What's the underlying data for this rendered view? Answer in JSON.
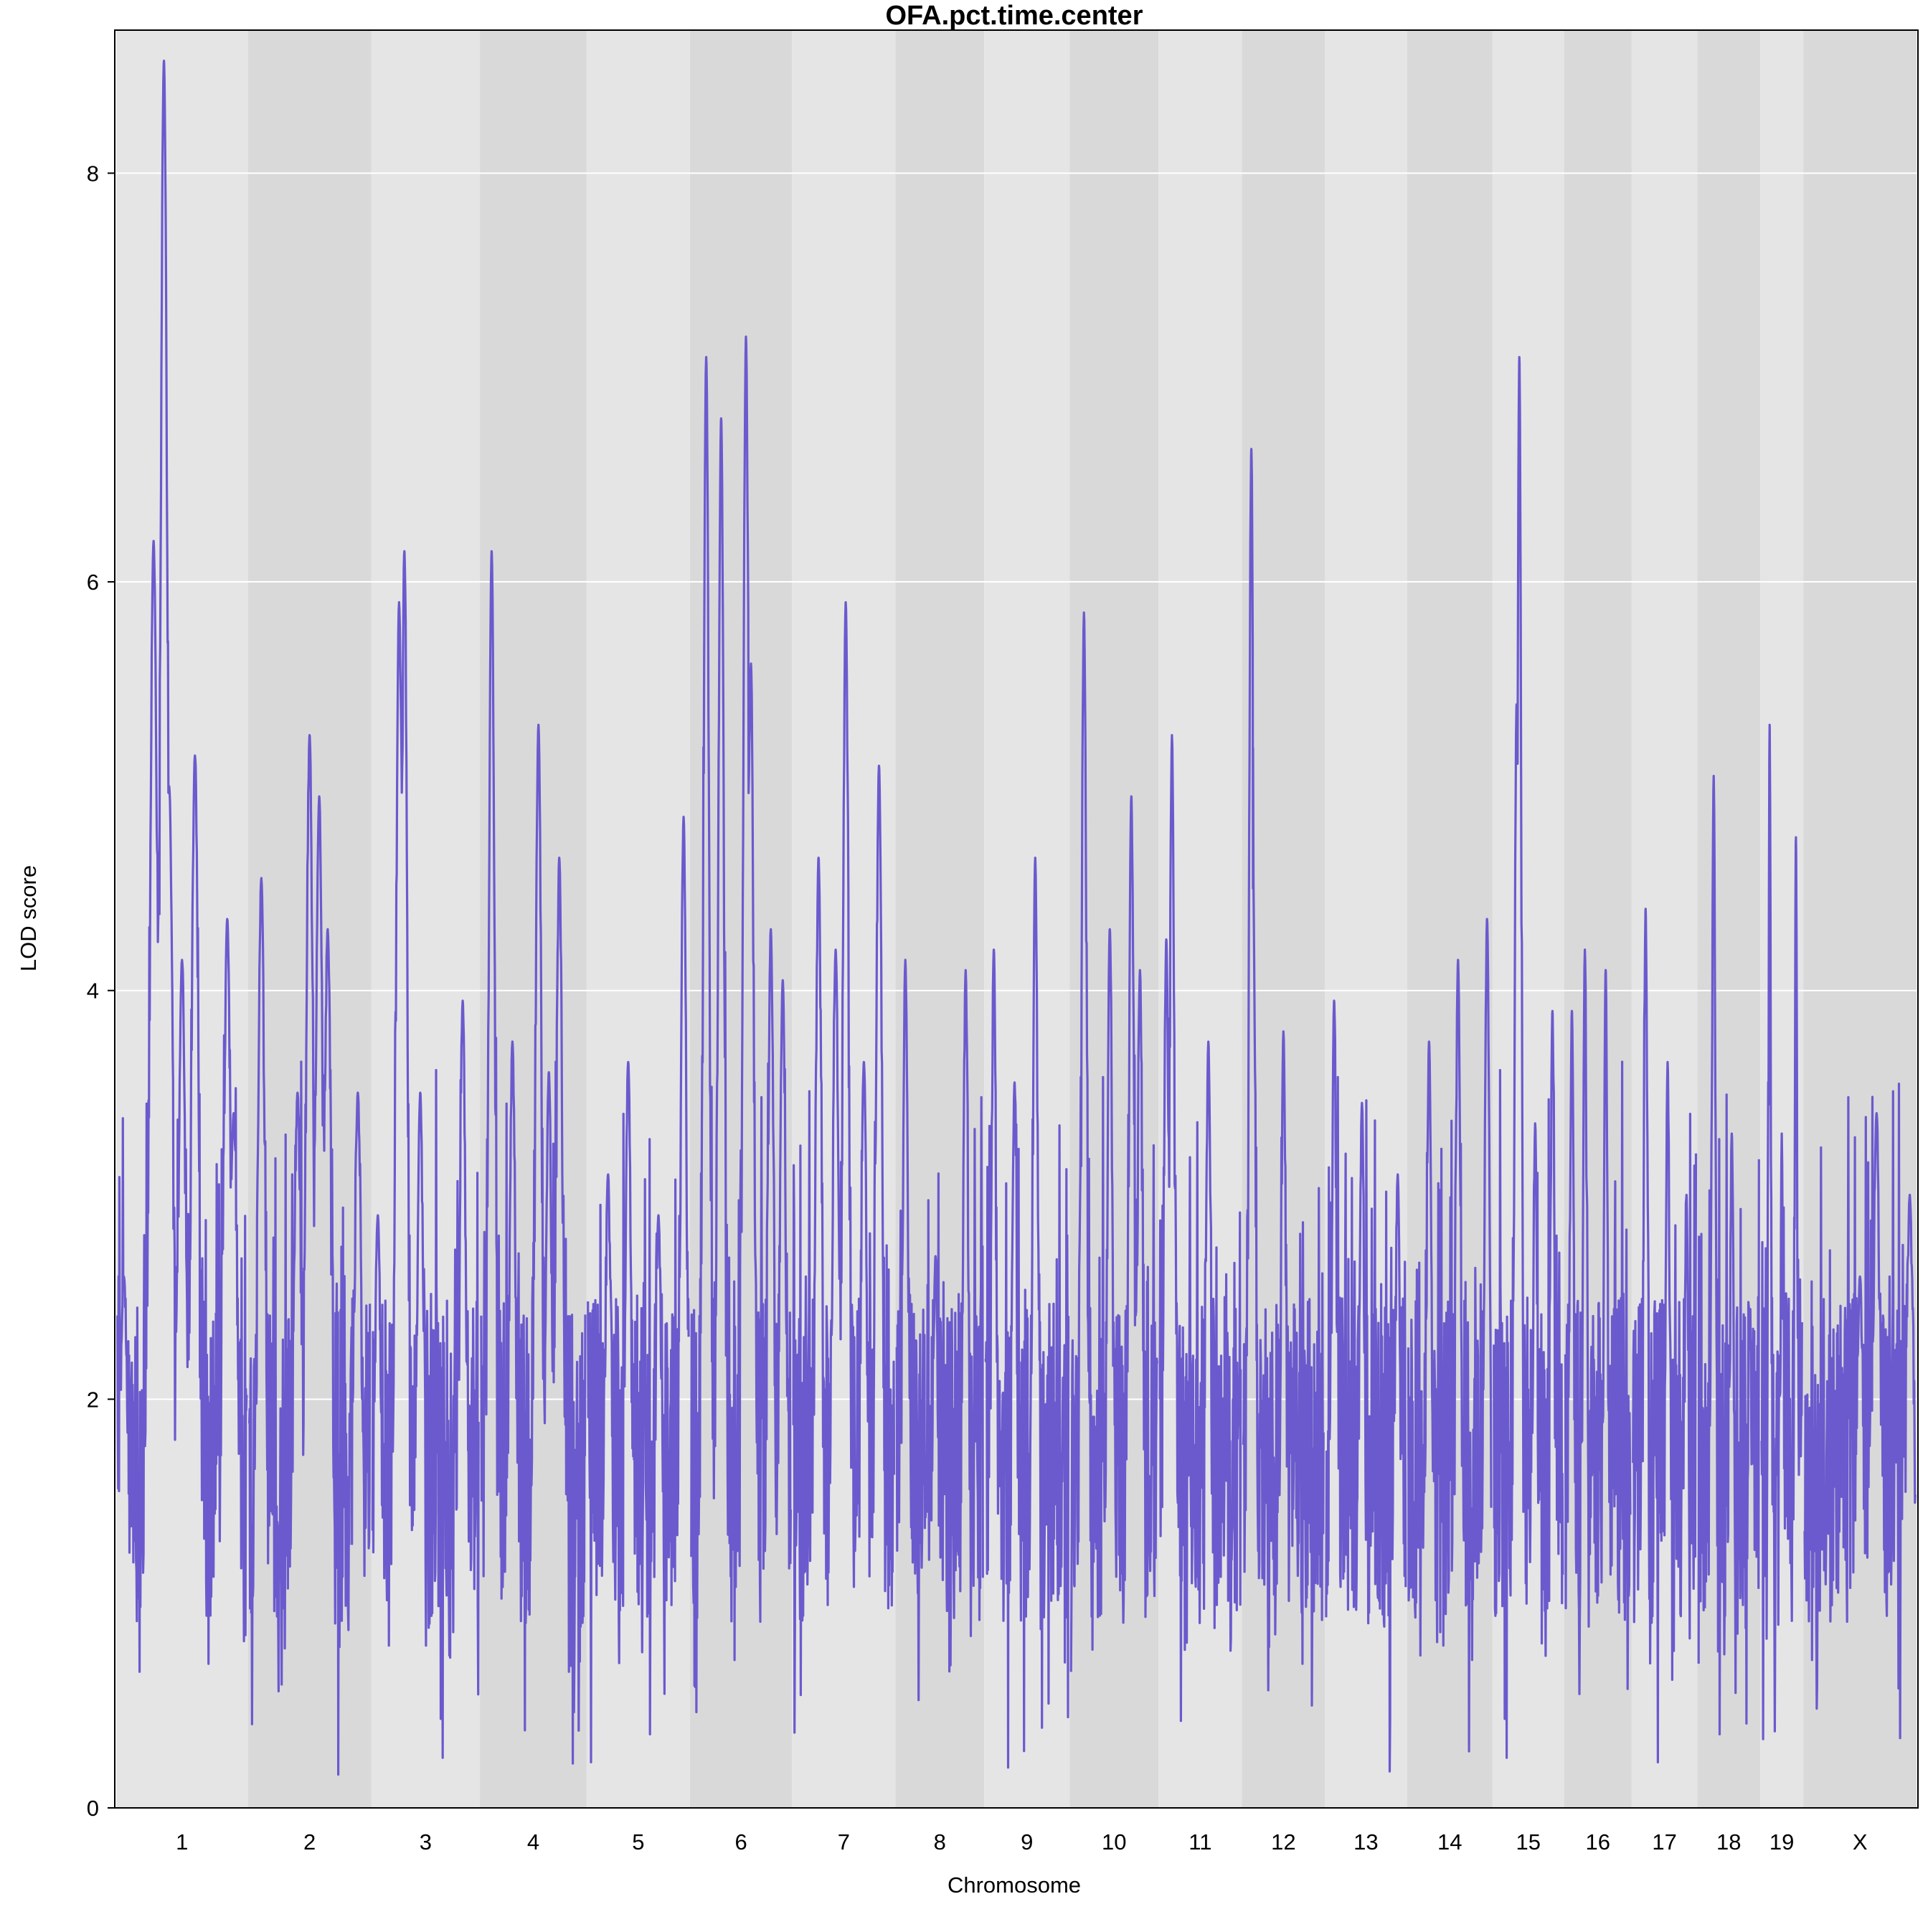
{
  "chart_data": {
    "type": "line",
    "title": "OFA.pct.time.center",
    "xlabel": "Chromosome",
    "ylabel": "LOD score",
    "ylim": [
      0,
      8.7
    ],
    "yticks": [
      "0",
      "2",
      "4",
      "6",
      "8"
    ],
    "grid": true,
    "legend": "none",
    "colors": {
      "line": "#6a5acd",
      "band_light": "#e5e5e5",
      "band_dark": "#d9d9d9",
      "grid": "#ffffff"
    },
    "chromosomes": [
      {
        "label": "1",
        "length": 195,
        "peaks": [
          [
            0.36,
            8.55
          ],
          [
            0.28,
            6.2
          ],
          [
            0.6,
            5.15
          ],
          [
            0.4,
            5.0
          ],
          [
            0.5,
            4.15
          ],
          [
            0.85,
            4.35
          ],
          [
            0.9,
            3.4
          ],
          [
            0.05,
            2.6
          ]
        ]
      },
      {
        "label": "2",
        "length": 182,
        "peaks": [
          [
            0.5,
            5.25
          ],
          [
            0.58,
            4.95
          ],
          [
            0.1,
            4.55
          ],
          [
            0.65,
            4.3
          ],
          [
            0.9,
            3.5
          ],
          [
            0.4,
            3.5
          ]
        ]
      },
      {
        "label": "3",
        "length": 160,
        "peaks": [
          [
            0.3,
            6.15
          ],
          [
            0.25,
            5.9
          ],
          [
            0.45,
            3.5
          ],
          [
            0.85,
            3.95
          ],
          [
            0.05,
            2.9
          ]
        ]
      },
      {
        "label": "4",
        "length": 157,
        "peaks": [
          [
            0.1,
            6.15
          ],
          [
            0.55,
            5.3
          ],
          [
            0.75,
            4.65
          ],
          [
            0.3,
            3.75
          ],
          [
            0.65,
            3.6
          ]
        ]
      },
      {
        "label": "5",
        "length": 152,
        "peaks": [
          [
            0.95,
            4.85
          ],
          [
            0.2,
            3.1
          ],
          [
            0.4,
            3.65
          ],
          [
            0.7,
            2.9
          ]
        ]
      },
      {
        "label": "6",
        "length": 150,
        "peaks": [
          [
            0.15,
            7.1
          ],
          [
            0.55,
            7.2
          ],
          [
            0.3,
            6.8
          ],
          [
            0.6,
            5.6
          ],
          [
            0.8,
            4.3
          ],
          [
            0.92,
            4.05
          ]
        ]
      },
      {
        "label": "7",
        "length": 152,
        "peaks": [
          [
            0.52,
            5.9
          ],
          [
            0.25,
            4.65
          ],
          [
            0.42,
            4.2
          ],
          [
            0.85,
            5.1
          ],
          [
            0.7,
            3.65
          ]
        ]
      },
      {
        "label": "8",
        "length": 130,
        "peaks": [
          [
            0.1,
            4.15
          ],
          [
            0.8,
            4.1
          ],
          [
            0.45,
            2.7
          ]
        ]
      },
      {
        "label": "9",
        "length": 125,
        "peaks": [
          [
            0.6,
            4.65
          ],
          [
            0.1,
            4.2
          ],
          [
            0.35,
            3.55
          ]
        ]
      },
      {
        "label": "10",
        "length": 130,
        "peaks": [
          [
            0.15,
            5.85
          ],
          [
            0.7,
            4.95
          ],
          [
            0.45,
            4.3
          ],
          [
            0.8,
            4.1
          ]
        ]
      },
      {
        "label": "11",
        "length": 122,
        "peaks": [
          [
            0.15,
            5.25
          ],
          [
            0.08,
            4.25
          ],
          [
            0.6,
            3.75
          ]
        ]
      },
      {
        "label": "12",
        "length": 121,
        "peaks": [
          [
            0.1,
            6.65
          ],
          [
            0.12,
            4.5
          ],
          [
            0.5,
            3.8
          ]
        ]
      },
      {
        "label": "13",
        "length": 120,
        "peaks": [
          [
            0.1,
            3.95
          ],
          [
            0.45,
            3.45
          ],
          [
            0.9,
            3.1
          ]
        ]
      },
      {
        "label": "14",
        "length": 125,
        "peaks": [
          [
            0.6,
            4.15
          ],
          [
            0.95,
            4.35
          ],
          [
            0.25,
            3.75
          ]
        ]
      },
      {
        "label": "15",
        "length": 104,
        "peaks": [
          [
            0.37,
            7.1
          ],
          [
            0.33,
            5.4
          ],
          [
            0.85,
            3.9
          ],
          [
            0.6,
            3.35
          ]
        ]
      },
      {
        "label": "16",
        "length": 98,
        "peaks": [
          [
            0.3,
            4.2
          ],
          [
            0.62,
            4.1
          ],
          [
            0.1,
            3.9
          ]
        ]
      },
      {
        "label": "17",
        "length": 95,
        "peaks": [
          [
            0.2,
            4.4
          ],
          [
            0.55,
            3.65
          ],
          [
            0.85,
            3.0
          ]
        ]
      },
      {
        "label": "18",
        "length": 91,
        "peaks": [
          [
            0.25,
            5.05
          ],
          [
            0.55,
            3.3
          ],
          [
            0.85,
            2.4
          ]
        ]
      },
      {
        "label": "19",
        "length": 61,
        "peaks": [
          [
            0.2,
            5.3
          ],
          [
            0.85,
            4.75
          ],
          [
            0.5,
            3.3
          ]
        ]
      },
      {
        "label": "X",
        "length": 167,
        "peaks": [
          [
            0.65,
            3.4
          ],
          [
            0.5,
            2.6
          ],
          [
            0.95,
            3.0
          ]
        ]
      }
    ]
  }
}
